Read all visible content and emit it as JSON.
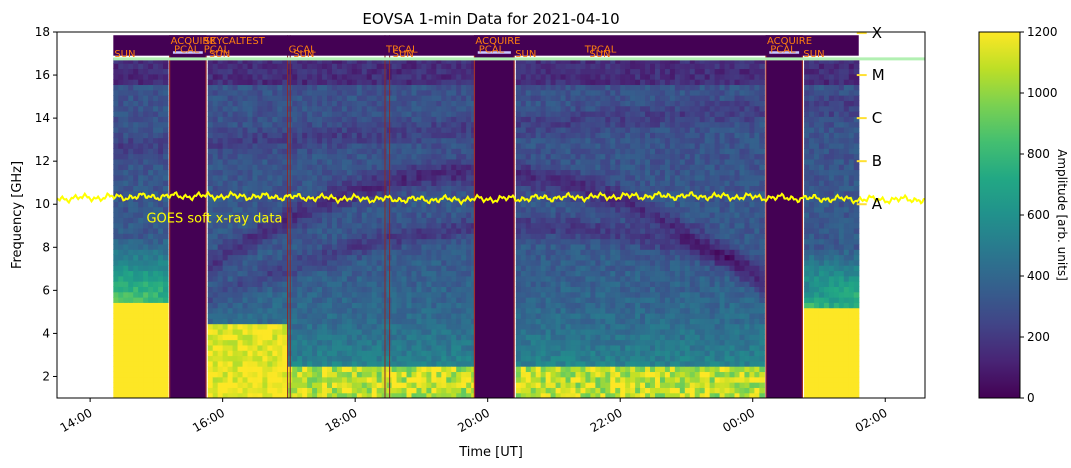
{
  "chart_data": {
    "type": "heatmap",
    "title": "EOVSA 1-min Data for 2021-04-10",
    "xlabel": "Time [UT]",
    "ylabel": "Frequency [GHz]",
    "colorbar_label": "Amplitude [arb. units]",
    "colormap": "viridis",
    "xlim_hours": [
      13.5,
      26.6
    ],
    "x_ticks": [
      {
        "hour": 14,
        "label": "14:00"
      },
      {
        "hour": 16,
        "label": "16:00"
      },
      {
        "hour": 18,
        "label": "18:00"
      },
      {
        "hour": 20,
        "label": "20:00"
      },
      {
        "hour": 22,
        "label": "22:00"
      },
      {
        "hour": 24,
        "label": "00:00"
      },
      {
        "hour": 26,
        "label": "02:00"
      }
    ],
    "ylim": [
      1.0,
      18.0
    ],
    "y_ticks": [
      2,
      4,
      6,
      8,
      10,
      12,
      14,
      16,
      18
    ],
    "colorbar_range": [
      0,
      1200
    ],
    "colorbar_ticks": [
      0,
      200,
      400,
      600,
      800,
      1000,
      1200
    ],
    "data_span_hours": [
      14.35,
      25.6
    ],
    "gaps_hours": [
      [
        15.2,
        15.75
      ],
      [
        19.8,
        20.4
      ],
      [
        24.2,
        24.75
      ]
    ],
    "scan_labels": [
      {
        "hour": 14.35,
        "text": "SUN",
        "row": 3
      },
      {
        "hour": 15.2,
        "text": "ACQUIRE",
        "row": 1
      },
      {
        "hour": 15.25,
        "text": "PCAL",
        "row": 2
      },
      {
        "hour": 15.7,
        "text": "SKYCALTEST",
        "row": 1
      },
      {
        "hour": 15.7,
        "text": "PCAL",
        "row": 2
      },
      {
        "hour": 15.78,
        "text": "SUN",
        "row": 3
      },
      {
        "hour": 16.98,
        "text": "GCAL",
        "row": 2
      },
      {
        "hour": 17.05,
        "text": "SUN",
        "row": 3
      },
      {
        "hour": 18.45,
        "text": "TPCAL",
        "row": 2
      },
      {
        "hour": 18.55,
        "text": "SUN",
        "row": 3
      },
      {
        "hour": 19.8,
        "text": "ACQUIRE",
        "row": 1
      },
      {
        "hour": 19.85,
        "text": "PCAL",
        "row": 2
      },
      {
        "hour": 20.4,
        "text": "SUN",
        "row": 3
      },
      {
        "hour": 21.45,
        "text": "TPCAL",
        "row": 2
      },
      {
        "hour": 21.52,
        "text": "SUN",
        "row": 3
      },
      {
        "hour": 24.2,
        "text": "ACQUIRE",
        "row": 1
      },
      {
        "hour": 24.25,
        "text": "PCAL",
        "row": 2
      },
      {
        "hour": 24.75,
        "text": "SUN",
        "row": 3
      }
    ],
    "goes_label": "GOES soft x-ray data",
    "goes_level_ghz": 10.3,
    "flare_classes": [
      {
        "label": "X",
        "freq": 17.95
      },
      {
        "label": "M",
        "freq": 16.0
      },
      {
        "label": "C",
        "freq": 14.0
      },
      {
        "label": "B",
        "freq": 12.0
      },
      {
        "label": "A",
        "freq": 10.0
      }
    ],
    "colors": {
      "goes": "#ffff00",
      "scan_label": "#ff7f0e",
      "sun_bar": "#b2f0b2",
      "pcal_bar": "#c8c8ff",
      "gap": "#440154",
      "flare_class": "#ffe033"
    }
  }
}
